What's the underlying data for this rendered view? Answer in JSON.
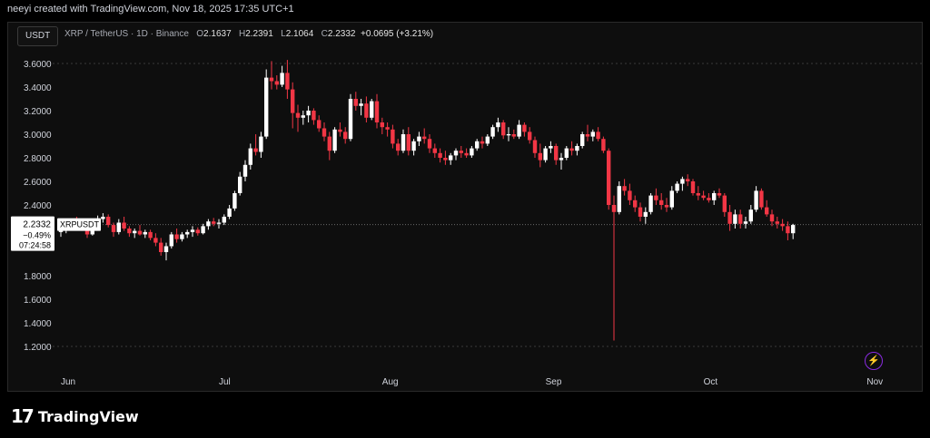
{
  "header": {
    "created_by": "neeyi created with TradingView.com, Nov 18, 2025 17:35 UTC+1"
  },
  "toolbar": {
    "currency": "USDT"
  },
  "legend": {
    "symbol": "XRP / TetherUS · 1D · Binance",
    "o_label": "O",
    "o": "2.1637",
    "h_label": "H",
    "h": "2.2391",
    "l_label": "L",
    "l": "2.1064",
    "c_label": "C",
    "c": "2.2332",
    "change": "+0.0695 (+3.21%)"
  },
  "price_label": {
    "price": "2.2332",
    "symbol": "XRPUSDT",
    "change": "−0.49%",
    "countdown": "07:24:58"
  },
  "colors": {
    "up": "#ffffff",
    "down": "#f23645",
    "grid": "#3a3a3a",
    "accent": "#9c27b0"
  },
  "footer": {
    "brand": "TradingView",
    "logo_icon": "tradingview-logo-icon",
    "bolt_icon": "lightning-icon"
  },
  "chart_data": {
    "type": "candlestick",
    "title": "XRP / TetherUS · 1D · Binance",
    "y_ticks": [
      "3.6000",
      "3.4000",
      "3.2000",
      "3.0000",
      "2.8000",
      "2.6000",
      "2.4000",
      "2.2000",
      "1.8000",
      "1.6000",
      "1.4000",
      "1.2000"
    ],
    "y_tick_values": [
      3.6,
      3.4,
      3.2,
      3.0,
      2.8,
      2.6,
      2.4,
      2.2,
      1.8,
      1.6,
      1.4,
      1.2
    ],
    "x_ticks": [
      {
        "label": "Jun",
        "index": 0
      },
      {
        "label": "Jul",
        "index": 30
      },
      {
        "label": "Aug",
        "index": 61
      },
      {
        "label": "Sep",
        "index": 92
      },
      {
        "label": "Oct",
        "index": 122
      },
      {
        "label": "Nov",
        "index": 153
      }
    ],
    "ylim": [
      1.2,
      3.65
    ],
    "last_price": 2.2332,
    "ohlc": [
      [
        2.17,
        2.22,
        2.13,
        2.19
      ],
      [
        2.19,
        2.26,
        2.16,
        2.24
      ],
      [
        2.24,
        2.28,
        2.2,
        2.26
      ],
      [
        2.26,
        2.3,
        2.22,
        2.25
      ],
      [
        2.25,
        2.27,
        2.18,
        2.2
      ],
      [
        2.2,
        2.22,
        2.12,
        2.15
      ],
      [
        2.15,
        2.26,
        2.14,
        2.24
      ],
      [
        2.24,
        2.31,
        2.22,
        2.28
      ],
      [
        2.28,
        2.33,
        2.25,
        2.3
      ],
      [
        2.3,
        2.32,
        2.21,
        2.23
      ],
      [
        2.23,
        2.25,
        2.13,
        2.17
      ],
      [
        2.17,
        2.28,
        2.15,
        2.25
      ],
      [
        2.25,
        2.3,
        2.18,
        2.2
      ],
      [
        2.2,
        2.22,
        2.13,
        2.16
      ],
      [
        2.16,
        2.2,
        2.12,
        2.18
      ],
      [
        2.18,
        2.23,
        2.14,
        2.15
      ],
      [
        2.15,
        2.19,
        2.12,
        2.17
      ],
      [
        2.17,
        2.19,
        2.1,
        2.12
      ],
      [
        2.12,
        2.16,
        2.05,
        2.08
      ],
      [
        2.08,
        2.12,
        1.97,
        2.0
      ],
      [
        2.0,
        2.08,
        1.93,
        2.05
      ],
      [
        2.05,
        2.17,
        2.03,
        2.15
      ],
      [
        2.15,
        2.2,
        2.08,
        2.11
      ],
      [
        2.11,
        2.17,
        2.09,
        2.15
      ],
      [
        2.15,
        2.19,
        2.12,
        2.17
      ],
      [
        2.17,
        2.22,
        2.13,
        2.19
      ],
      [
        2.19,
        2.21,
        2.14,
        2.16
      ],
      [
        2.16,
        2.24,
        2.15,
        2.22
      ],
      [
        2.22,
        2.28,
        2.19,
        2.26
      ],
      [
        2.26,
        2.29,
        2.22,
        2.24
      ],
      [
        2.24,
        2.28,
        2.2,
        2.25
      ],
      [
        2.25,
        2.32,
        2.23,
        2.3
      ],
      [
        2.3,
        2.4,
        2.28,
        2.37
      ],
      [
        2.37,
        2.52,
        2.35,
        2.5
      ],
      [
        2.5,
        2.68,
        2.48,
        2.64
      ],
      [
        2.64,
        2.78,
        2.6,
        2.74
      ],
      [
        2.74,
        2.92,
        2.7,
        2.88
      ],
      [
        2.88,
        3.0,
        2.82,
        2.85
      ],
      [
        2.85,
        3.02,
        2.8,
        2.98
      ],
      [
        2.98,
        3.55,
        2.96,
        3.48
      ],
      [
        3.48,
        3.62,
        3.38,
        3.45
      ],
      [
        3.45,
        3.5,
        3.38,
        3.42
      ],
      [
        3.42,
        3.58,
        3.4,
        3.52
      ],
      [
        3.52,
        3.63,
        3.3,
        3.38
      ],
      [
        3.38,
        3.44,
        3.05,
        3.18
      ],
      [
        3.18,
        3.25,
        3.02,
        3.14
      ],
      [
        3.14,
        3.2,
        3.08,
        3.16
      ],
      [
        3.16,
        3.24,
        3.1,
        3.2
      ],
      [
        3.2,
        3.22,
        3.08,
        3.12
      ],
      [
        3.12,
        3.16,
        3.02,
        3.05
      ],
      [
        3.05,
        3.1,
        2.94,
        2.98
      ],
      [
        2.98,
        3.02,
        2.78,
        2.86
      ],
      [
        2.86,
        3.06,
        2.84,
        3.04
      ],
      [
        3.04,
        3.1,
        2.98,
        3.02
      ],
      [
        3.02,
        3.06,
        2.92,
        2.96
      ],
      [
        2.96,
        3.34,
        2.94,
        3.3
      ],
      [
        3.3,
        3.36,
        3.2,
        3.24
      ],
      [
        3.24,
        3.3,
        3.16,
        3.26
      ],
      [
        3.26,
        3.32,
        3.1,
        3.14
      ],
      [
        3.14,
        3.3,
        3.12,
        3.28
      ],
      [
        3.28,
        3.34,
        3.05,
        3.1
      ],
      [
        3.1,
        3.14,
        3.0,
        3.06
      ],
      [
        3.06,
        3.1,
        2.98,
        3.04
      ],
      [
        3.04,
        3.08,
        2.88,
        2.92
      ],
      [
        2.92,
        2.96,
        2.82,
        2.86
      ],
      [
        2.86,
        3.04,
        2.84,
        3.0
      ],
      [
        3.0,
        3.06,
        2.82,
        2.86
      ],
      [
        2.86,
        2.96,
        2.82,
        2.94
      ],
      [
        2.94,
        3.02,
        2.9,
        2.98
      ],
      [
        2.98,
        3.05,
        2.92,
        2.96
      ],
      [
        2.96,
        3.0,
        2.84,
        2.88
      ],
      [
        2.88,
        2.92,
        2.8,
        2.84
      ],
      [
        2.84,
        2.88,
        2.76,
        2.8
      ],
      [
        2.8,
        2.86,
        2.74,
        2.78
      ],
      [
        2.78,
        2.84,
        2.74,
        2.82
      ],
      [
        2.82,
        2.88,
        2.78,
        2.86
      ],
      [
        2.86,
        2.9,
        2.8,
        2.84
      ],
      [
        2.84,
        2.88,
        2.8,
        2.82
      ],
      [
        2.82,
        2.9,
        2.8,
        2.88
      ],
      [
        2.88,
        2.96,
        2.86,
        2.94
      ],
      [
        2.94,
        2.98,
        2.88,
        2.92
      ],
      [
        2.92,
        3.0,
        2.9,
        2.98
      ],
      [
        2.98,
        3.08,
        2.96,
        3.06
      ],
      [
        3.06,
        3.14,
        3.02,
        3.1
      ],
      [
        3.1,
        3.12,
        2.96,
        2.99
      ],
      [
        2.99,
        3.06,
        2.94,
        3.0
      ],
      [
        3.0,
        3.04,
        2.96,
        2.98
      ],
      [
        2.98,
        3.12,
        2.96,
        3.08
      ],
      [
        3.08,
        3.1,
        2.98,
        3.02
      ],
      [
        3.02,
        3.06,
        2.92,
        2.95
      ],
      [
        2.95,
        2.98,
        2.8,
        2.84
      ],
      [
        2.84,
        2.92,
        2.72,
        2.78
      ],
      [
        2.78,
        2.9,
        2.76,
        2.88
      ],
      [
        2.88,
        2.94,
        2.84,
        2.9
      ],
      [
        2.9,
        2.92,
        2.74,
        2.78
      ],
      [
        2.78,
        2.84,
        2.7,
        2.8
      ],
      [
        2.8,
        2.9,
        2.78,
        2.88
      ],
      [
        2.88,
        2.94,
        2.82,
        2.86
      ],
      [
        2.86,
        2.92,
        2.82,
        2.9
      ],
      [
        2.9,
        3.02,
        2.88,
        3.0
      ],
      [
        3.0,
        3.08,
        2.94,
        2.98
      ],
      [
        2.98,
        3.04,
        2.94,
        3.02
      ],
      [
        3.02,
        3.06,
        2.94,
        2.96
      ],
      [
        2.96,
        2.98,
        2.84,
        2.86
      ],
      [
        2.86,
        2.88,
        2.36,
        2.4
      ],
      [
        2.4,
        2.48,
        1.25,
        2.34
      ],
      [
        2.34,
        2.6,
        2.32,
        2.56
      ],
      [
        2.56,
        2.62,
        2.48,
        2.52
      ],
      [
        2.52,
        2.58,
        2.4,
        2.44
      ],
      [
        2.44,
        2.48,
        2.34,
        2.38
      ],
      [
        2.38,
        2.42,
        2.26,
        2.3
      ],
      [
        2.3,
        2.38,
        2.24,
        2.34
      ],
      [
        2.34,
        2.5,
        2.32,
        2.48
      ],
      [
        2.48,
        2.54,
        2.4,
        2.44
      ],
      [
        2.44,
        2.5,
        2.36,
        2.4
      ],
      [
        2.4,
        2.46,
        2.34,
        2.38
      ],
      [
        2.38,
        2.56,
        2.36,
        2.52
      ],
      [
        2.52,
        2.6,
        2.5,
        2.58
      ],
      [
        2.58,
        2.64,
        2.52,
        2.62
      ],
      [
        2.62,
        2.66,
        2.56,
        2.6
      ],
      [
        2.6,
        2.62,
        2.48,
        2.5
      ],
      [
        2.5,
        2.56,
        2.44,
        2.48
      ],
      [
        2.48,
        2.52,
        2.44,
        2.46
      ],
      [
        2.46,
        2.5,
        2.42,
        2.44
      ],
      [
        2.44,
        2.52,
        2.4,
        2.5
      ],
      [
        2.5,
        2.54,
        2.46,
        2.48
      ],
      [
        2.48,
        2.5,
        2.3,
        2.34
      ],
      [
        2.34,
        2.4,
        2.18,
        2.24
      ],
      [
        2.24,
        2.36,
        2.2,
        2.32
      ],
      [
        2.32,
        2.36,
        2.2,
        2.24
      ],
      [
        2.24,
        2.3,
        2.2,
        2.26
      ],
      [
        2.26,
        2.4,
        2.24,
        2.36
      ],
      [
        2.36,
        2.56,
        2.34,
        2.52
      ],
      [
        2.52,
        2.54,
        2.36,
        2.38
      ],
      [
        2.38,
        2.44,
        2.3,
        2.32
      ],
      [
        2.32,
        2.36,
        2.22,
        2.26
      ],
      [
        2.26,
        2.3,
        2.2,
        2.24
      ],
      [
        2.24,
        2.28,
        2.18,
        2.22
      ],
      [
        2.22,
        2.26,
        2.1,
        2.16
      ],
      [
        2.16,
        2.24,
        2.11,
        2.23
      ]
    ]
  }
}
